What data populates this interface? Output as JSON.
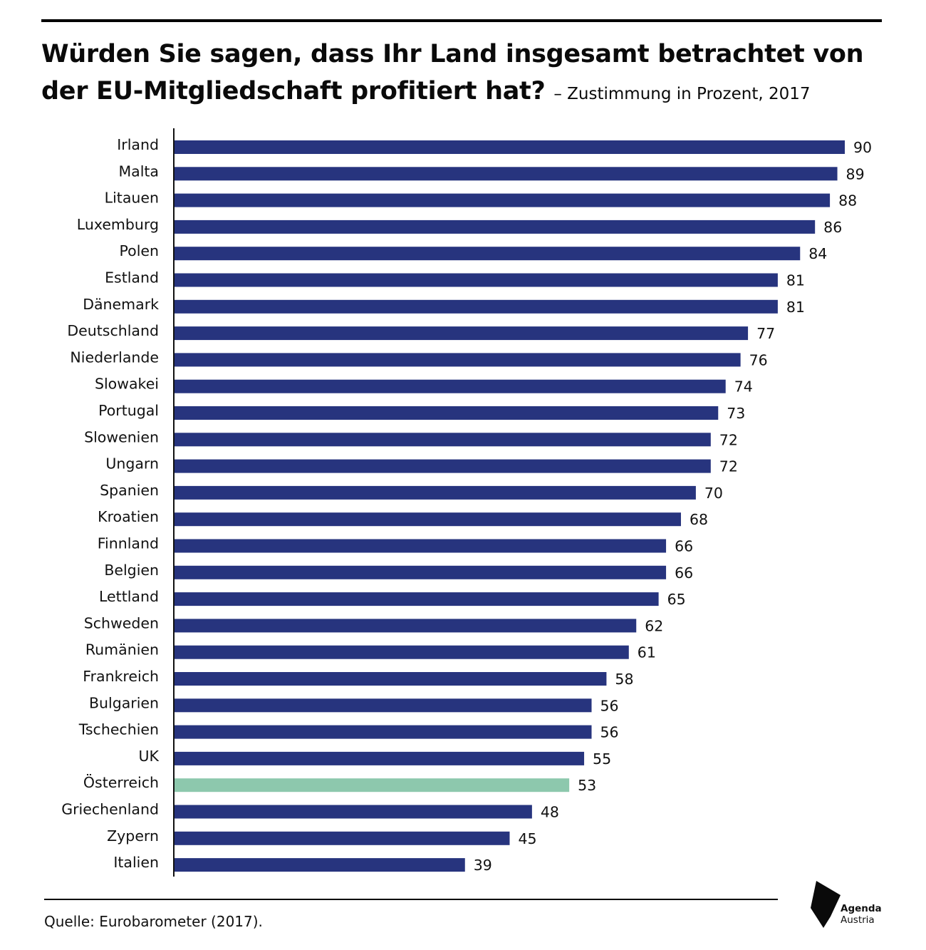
{
  "title": "Würden Sie sagen, dass Ihr Land insgesamt betrachtet von der EU-Mitgliedschaft profitiert hat?",
  "subtitle": "– Zustimmung in Prozent, 2017",
  "source": "Quelle: Eurobarometer (2017).",
  "logo": {
    "line1": "Agenda",
    "line2": "Austria"
  },
  "colors": {
    "bar": "#27347e",
    "highlight": "#8dc8ad",
    "text": "#111111"
  },
  "chart_data": {
    "type": "bar",
    "orientation": "horizontal",
    "title": "Würden Sie sagen, dass Ihr Land insgesamt betrachtet von der EU-Mitgliedschaft profitiert hat?",
    "subtitle": "– Zustimmung in Prozent, 2017",
    "categories": [
      "Irland",
      "Malta",
      "Litauen",
      "Luxemburg",
      "Polen",
      "Estland",
      "Dänemark",
      "Deutschland",
      "Niederlande",
      "Slowakei",
      "Portugal",
      "Slowenien",
      "Ungarn",
      "Spanien",
      "Kroatien",
      "Finnland",
      "Belgien",
      "Lettland",
      "Schweden",
      "Rumänien",
      "Frankreich",
      "Bulgarien",
      "Tschechien",
      "UK",
      "Österreich",
      "Griechenland",
      "Zypern",
      "Italien"
    ],
    "values": [
      90,
      89,
      88,
      86,
      84,
      81,
      81,
      77,
      76,
      74,
      73,
      72,
      72,
      70,
      68,
      66,
      66,
      65,
      62,
      61,
      58,
      56,
      56,
      55,
      53,
      48,
      45,
      39
    ],
    "highlight": "Österreich",
    "xlim": [
      0,
      90
    ],
    "grid": false,
    "legend": "none",
    "data_labels": true
  }
}
